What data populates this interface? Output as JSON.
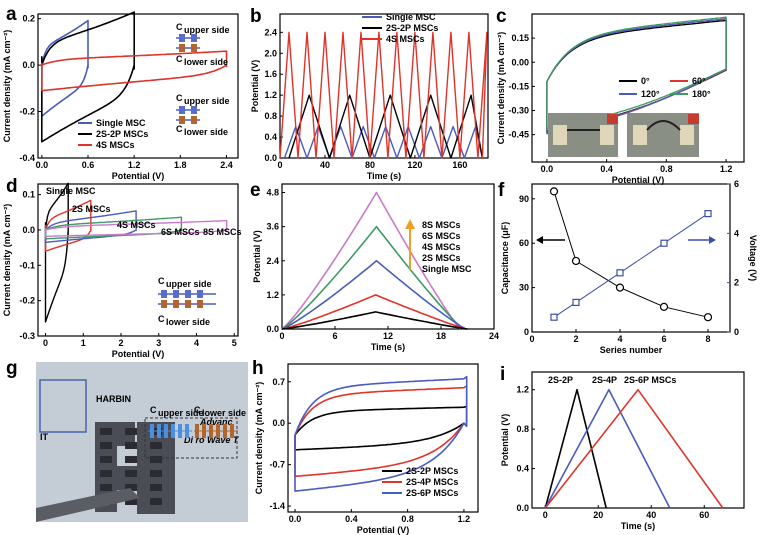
{
  "chart_data": [
    {
      "panel": "a",
      "type": "line",
      "xlabel": "Potential (V)",
      "ylabel": "Current density (mA cm⁻²)",
      "xlim": [
        -0.05,
        2.55
      ],
      "ylim": [
        -0.4,
        0.22
      ],
      "xticks": [
        "0.0",
        "0.6",
        "1.2",
        "1.8",
        "2.4"
      ],
      "yticks": [
        "-0.4",
        "-0.2",
        "0.0",
        "0.2"
      ],
      "legend": [
        "Single MSC",
        "2S-2P MSCs",
        "4S MSCs"
      ],
      "annotations": [
        "C",
        "upper side",
        "C",
        "lower side",
        "C",
        "upper side",
        "C",
        "lower side"
      ],
      "series": [
        {
          "name": "Single MSC",
          "color": "#4a5bbf",
          "loops": [
            {
              "vmin": 0,
              "vmax": 0.6,
              "top": 0.16,
              "bottom": -0.22
            }
          ]
        },
        {
          "name": "2S-2P MSCs",
          "color": "#000000",
          "loops": [
            {
              "vmin": 0,
              "vmax": 1.2,
              "top": 0.19,
              "bottom": -0.33
            }
          ]
        },
        {
          "name": "4S MSCs",
          "color": "#e0332a",
          "loops": [
            {
              "vmin": 0,
              "vmax": 2.4,
              "top": 0.05,
              "bottom": -0.11
            }
          ]
        }
      ]
    },
    {
      "panel": "b",
      "type": "line",
      "xlabel": "Time (s)",
      "ylabel": "Potential (V)",
      "xlim": [
        0,
        185
      ],
      "ylim": [
        0,
        2.75
      ],
      "xticks": [
        "0",
        "40",
        "80",
        "120",
        "160"
      ],
      "yticks": [
        "0.0",
        "0.4",
        "0.8",
        "1.2",
        "1.6",
        "2.0",
        "2.4"
      ],
      "legend": [
        "Single MSC",
        "2S-2P MSCs",
        "4S MSCs"
      ],
      "series": [
        {
          "name": "Single MSC",
          "color": "#4a5bbf",
          "vmax": 0.6,
          "period": 20,
          "offset": 4
        },
        {
          "name": "2S-2P MSCs",
          "color": "#000000",
          "vmax": 1.2,
          "period": 36,
          "offset": 8
        },
        {
          "name": "4S MSCs",
          "color": "#e0332a",
          "vmax": 2.4,
          "period": 16,
          "offset": 0
        }
      ]
    },
    {
      "panel": "c",
      "type": "line",
      "xlabel": "Potential (V)",
      "ylabel": "Current density (mA cm⁻²)",
      "xlim": [
        -0.1,
        1.32
      ],
      "ylim": [
        -0.62,
        0.3
      ],
      "xticks": [
        "0.0",
        "0.4",
        "0.8",
        "1.2"
      ],
      "yticks": [
        "-0.45",
        "-0.30",
        "-0.15",
        "0.00",
        "0.15"
      ],
      "legend": [
        "0°",
        "60°",
        "120°",
        "180°"
      ],
      "series": [
        {
          "name": "0°",
          "color": "#000000",
          "top": 0.24,
          "bottom": -0.43
        },
        {
          "name": "60°",
          "color": "#e0332a",
          "top": 0.25,
          "bottom": -0.44
        },
        {
          "name": "120°",
          "color": "#4a5bbf",
          "top": 0.25,
          "bottom": -0.45
        },
        {
          "name": "180°",
          "color": "#3d9a62",
          "top": 0.26,
          "bottom": -0.42
        }
      ]
    },
    {
      "panel": "d",
      "type": "line",
      "xlabel": "Potential (V)",
      "ylabel": "Current density (mA cm⁻²)",
      "xlim": [
        -0.2,
        5.1
      ],
      "ylim": [
        -0.3,
        0.13
      ],
      "xticks": [
        "0",
        "1",
        "2",
        "3",
        "4",
        "5"
      ],
      "yticks": [
        "-0.3",
        "-0.2",
        "-0.1",
        "0.0",
        "0.1"
      ],
      "annotations": [
        "Single MSC",
        "2S MSCs",
        "4S MSCs",
        "6S MSCs",
        "8S MSCs",
        "C",
        "upper side",
        "C",
        "lower side"
      ],
      "series": [
        {
          "name": "Single MSC",
          "color": "#000000",
          "vmax": 0.6,
          "top": 0.11,
          "bottom": -0.26
        },
        {
          "name": "2S MSCs",
          "color": "#e0332a",
          "vmax": 1.2,
          "top": 0.07,
          "bottom": -0.06
        },
        {
          "name": "4S MSCs",
          "color": "#4a5bbf",
          "vmax": 2.4,
          "top": 0.045,
          "bottom": -0.035
        },
        {
          "name": "6S MSCs",
          "color": "#3d9a62",
          "vmax": 3.6,
          "top": 0.03,
          "bottom": -0.025
        },
        {
          "name": "8S MSCs",
          "color": "#c97acb",
          "vmax": 4.8,
          "top": 0.022,
          "bottom": -0.018
        }
      ]
    },
    {
      "panel": "e",
      "type": "line",
      "xlabel": "Time (s)",
      "ylabel": "Potential (V)",
      "xlim": [
        0,
        24
      ],
      "ylim": [
        0,
        5.1
      ],
      "xticks": [
        "0",
        "6",
        "12",
        "18",
        "24"
      ],
      "yticks": [
        "0.0",
        "1.2",
        "2.4",
        "3.6",
        "4.8"
      ],
      "legend": [
        "8S MSCs",
        "6S MSCs",
        "4S MSCs",
        "2S MSCs",
        "Single MSC"
      ],
      "series": [
        {
          "name": "8S MSCs",
          "color": "#c97acb",
          "vmax": 4.8,
          "tpeak": 10.7,
          "tend": 20.2
        },
        {
          "name": "6S MSCs",
          "color": "#3d9a62",
          "vmax": 3.6,
          "tpeak": 10.7,
          "tend": 20.5
        },
        {
          "name": "4S MSCs",
          "color": "#4a5bbf",
          "vmax": 2.4,
          "tpeak": 10.7,
          "tend": 20.8
        },
        {
          "name": "2S MSCs",
          "color": "#e0332a",
          "vmax": 1.2,
          "tpeak": 10.6,
          "tend": 20.9
        },
        {
          "name": "Single MSC",
          "color": "#000000",
          "vmax": 0.6,
          "tpeak": 10.6,
          "tend": 21.0
        }
      ]
    },
    {
      "panel": "f",
      "type": "scatter",
      "xlabel": "Series number",
      "ylabel": "Capacitance (μF)",
      "ylabel2": "Voltage (V)",
      "xlim": [
        0,
        9
      ],
      "ylim": [
        0,
        100
      ],
      "ylim2": [
        0,
        6
      ],
      "xticks": [
        "0",
        "2",
        "4",
        "6",
        "8"
      ],
      "yticks": [
        "0",
        "30",
        "60",
        "90"
      ],
      "yticks2": [
        "0",
        "2",
        "4",
        "6"
      ],
      "series": [
        {
          "name": "Capacitance",
          "color": "#000000",
          "x": [
            1,
            2,
            4,
            6,
            8
          ],
          "y": [
            95,
            48,
            30,
            17,
            10
          ]
        },
        {
          "name": "Voltage",
          "color": "#3c4fa8",
          "x": [
            1,
            2,
            4,
            6,
            8
          ],
          "y": [
            0.6,
            1.2,
            2.4,
            3.6,
            4.8
          ]
        }
      ]
    },
    {
      "panel": "h",
      "type": "line",
      "xlabel": "Potential (V)",
      "ylabel": "Current density (mA cm⁻²)",
      "xlim": [
        -0.05,
        1.3
      ],
      "ylim": [
        -1.5,
        1.0
      ],
      "xticks": [
        "0.0",
        "0.4",
        "0.8",
        "1.2"
      ],
      "yticks": [
        "-1.4",
        "-0.7",
        "0.0",
        "0.7"
      ],
      "legend": [
        "2S-2P MSCs",
        "2S-4P MSCs",
        "2S-6P MSCs"
      ],
      "series": [
        {
          "name": "2S-2P MSCs",
          "color": "#000000",
          "top": 0.27,
          "bottom": -0.45
        },
        {
          "name": "2S-4P MSCs",
          "color": "#e0332a",
          "top": 0.6,
          "bottom": -0.9
        },
        {
          "name": "2S-6P MSCs",
          "color": "#4a5bbf",
          "top": 0.75,
          "bottom": -1.15
        }
      ]
    },
    {
      "panel": "i",
      "type": "line",
      "xlabel": "Time (s)",
      "ylabel": "Potential (V)",
      "xlim": [
        -5,
        75
      ],
      "ylim": [
        0,
        1.38
      ],
      "xticks": [
        "0",
        "20",
        "40",
        "60"
      ],
      "yticks": [
        "0.0",
        "0.4",
        "0.8",
        "1.2"
      ],
      "annotations": [
        "2S-2P",
        "2S-4P",
        "2S-6P  MSCs"
      ],
      "series": [
        {
          "name": "2S-2P",
          "color": "#000000",
          "tpeak": 12,
          "tend": 23
        },
        {
          "name": "2S-4P",
          "color": "#4a5bbf",
          "tpeak": 24,
          "tend": 47
        },
        {
          "name": "2S-6P",
          "color": "#e0332a",
          "tpeak": 35,
          "tend": 67
        }
      ]
    }
  ],
  "photo_g": {
    "label_upper": "C",
    "label_upper_sub": "upper side",
    "label_lower": "C",
    "label_lower_sub": "lower side",
    "bg_text_1": "HARBIN",
    "bg_text_2": "Advanc",
    "bg_text_3": "Di    ro Wave T",
    "bg_text_4": "IT"
  },
  "panel_letters": [
    "a",
    "b",
    "c",
    "d",
    "e",
    "f",
    "g",
    "h",
    "i"
  ]
}
